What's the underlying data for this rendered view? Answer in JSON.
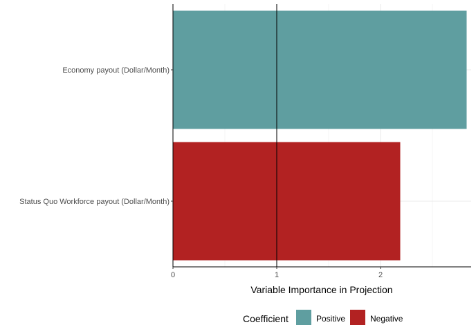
{
  "chart_data": {
    "type": "bar",
    "orientation": "horizontal",
    "categories": [
      "Economy payout (Dollar/Month)",
      "Status Quo Workforce payout (Dollar/Month)"
    ],
    "values": [
      2.83,
      2.19
    ],
    "bar_coefficient": [
      "Positive",
      "Negative"
    ],
    "xlabel": "Variable Importance in Projection",
    "ylabel": "",
    "xlim": [
      0,
      2.85
    ],
    "x_ticks": [
      0,
      1,
      2
    ],
    "x_tick_labels": [
      "0",
      "1",
      "2"
    ],
    "reference_line_x": 1,
    "grid": true,
    "legend": {
      "title": "Coefficient",
      "position": "bottom",
      "entries": [
        {
          "label": "Positive",
          "color": "#5f9ea0"
        },
        {
          "label": "Negative",
          "color": "#b22222"
        }
      ]
    }
  }
}
